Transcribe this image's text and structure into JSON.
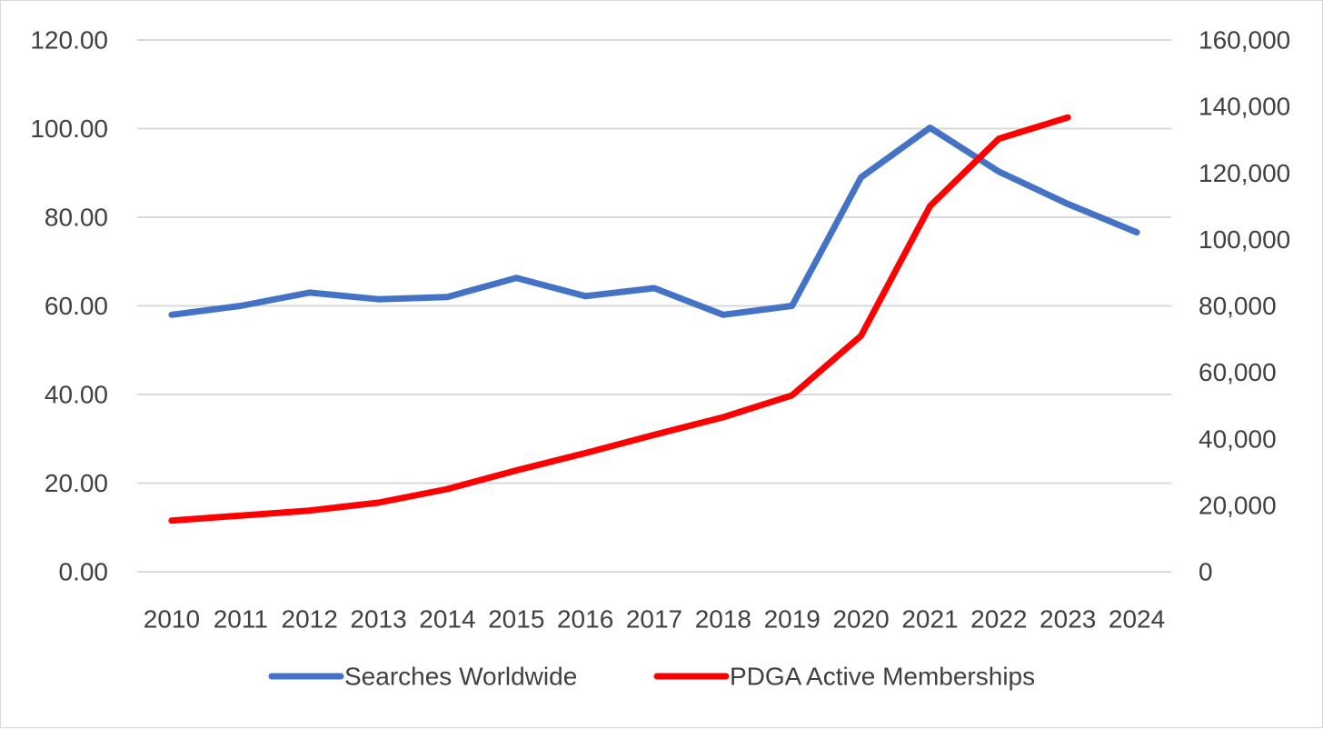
{
  "chart_data": {
    "type": "line",
    "title": "",
    "xlabel": "",
    "ylabel": "",
    "y2label": "",
    "grid": true,
    "legend_position": "bottom",
    "x": [
      "2010",
      "2011",
      "2012",
      "2013",
      "2014",
      "2015",
      "2016",
      "2017",
      "2018",
      "2019",
      "2020",
      "2021",
      "2022",
      "2023",
      "2024"
    ],
    "ylim": [
      0,
      120
    ],
    "y_ticks": [
      "0.00",
      "20.00",
      "40.00",
      "60.00",
      "80.00",
      "100.00",
      "120.00"
    ],
    "y2lim": [
      0,
      160000
    ],
    "y2_ticks": [
      "0",
      "20,000",
      "40,000",
      "60,000",
      "80,000",
      "100,000",
      "120,000",
      "140,000",
      "160,000"
    ],
    "series": [
      {
        "name": "Searches Worldwide",
        "axis": "left",
        "color": "#4472C4",
        "values": [
          58,
          60,
          63,
          61.5,
          62,
          66.3,
          62.2,
          64,
          58,
          60,
          89,
          100.2,
          90.3,
          83,
          76.6
        ]
      },
      {
        "name": "PDGA Active Memberships",
        "axis": "right",
        "color": "#FF0000",
        "values": [
          15400,
          16900,
          18400,
          20800,
          24900,
          30500,
          35700,
          41200,
          46500,
          53100,
          71000,
          110000,
          130300,
          136700,
          null
        ]
      }
    ]
  }
}
